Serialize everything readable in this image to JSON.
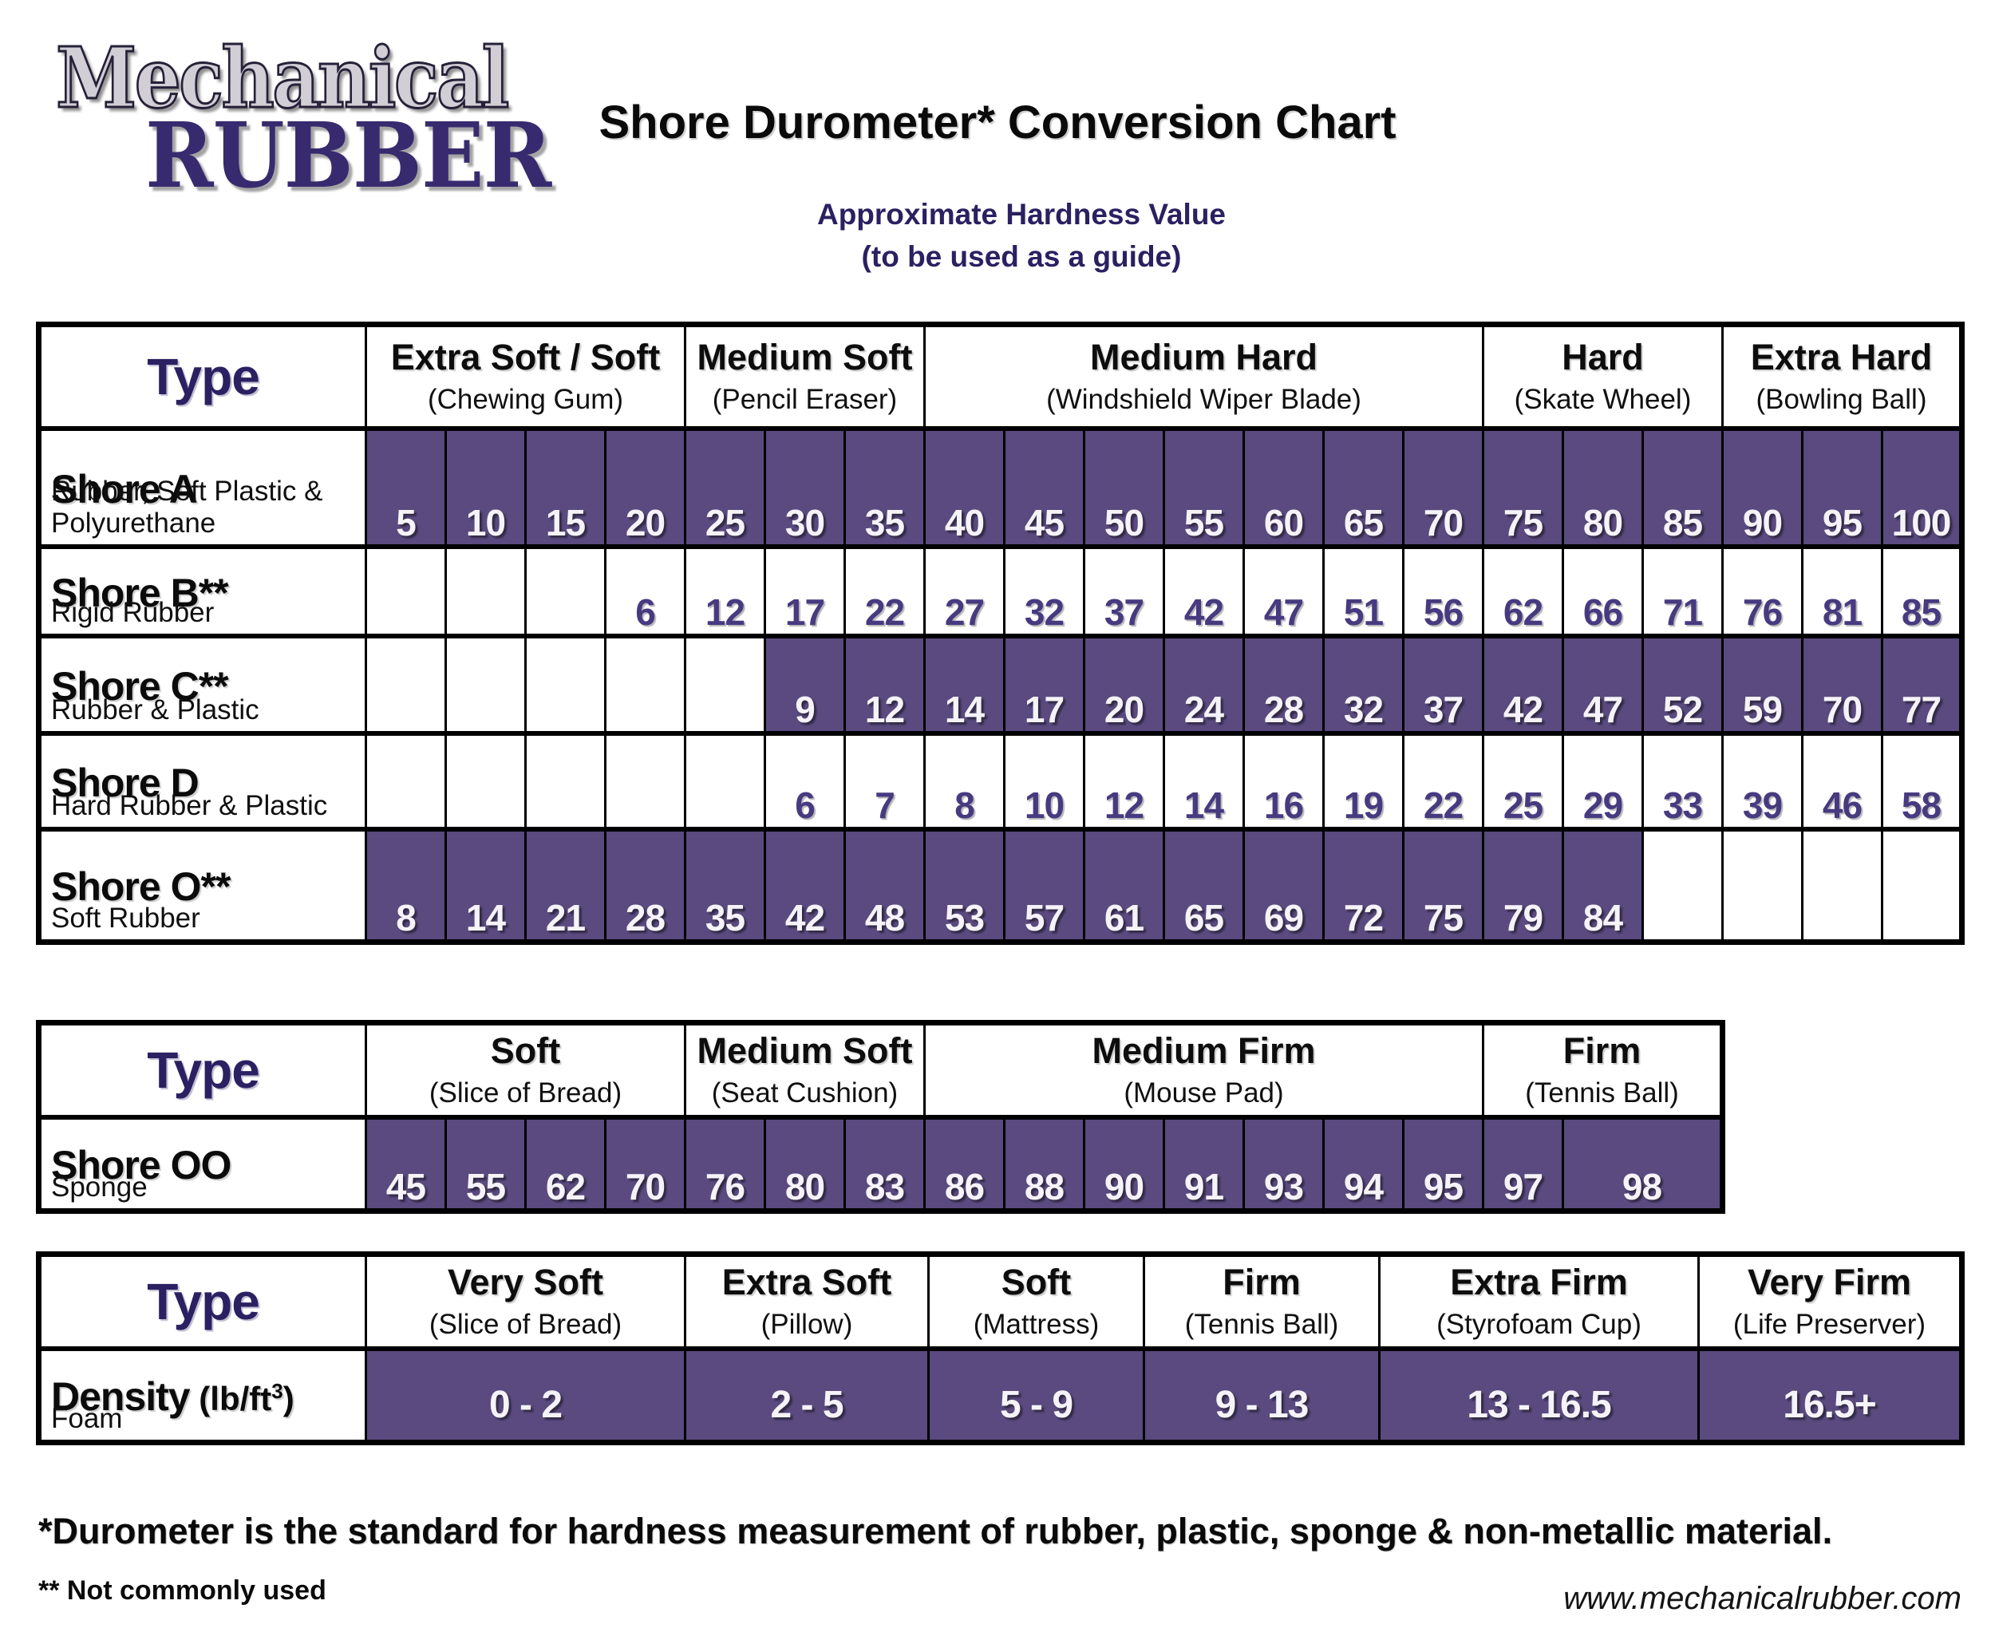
{
  "logo": {
    "line1": "Mechanical",
    "line2": "RUBBER"
  },
  "header": {
    "title": "Shore Durometer* Conversion Chart",
    "subtitle_line1": "Approximate Hardness Value",
    "subtitle_line2": "(to be used as a guide)"
  },
  "colors": {
    "cell_purple": "#5a4a7f",
    "heading_indigo": "#2b2061",
    "value_text_purple": "#473a80"
  },
  "table1": {
    "type_label": "Type",
    "groups": [
      {
        "label": "Extra Soft / Soft",
        "example": "(Chewing Gum)",
        "span": 4
      },
      {
        "label": "Medium Soft",
        "example": "(Pencil Eraser)",
        "span": 3
      },
      {
        "label": "Medium Hard",
        "example": "(Windshield Wiper Blade)",
        "span": 7
      },
      {
        "label": "Hard",
        "example": "(Skate Wheel)",
        "span": 3
      },
      {
        "label": "Extra Hard",
        "example": "(Bowling Ball)",
        "span": 3
      }
    ],
    "rows": [
      {
        "name": "Shore A",
        "desc": "Rubber, Soft Plastic & Polyurethane",
        "fill": "purple",
        "values": [
          "5",
          "10",
          "15",
          "20",
          "25",
          "30",
          "35",
          "40",
          "45",
          "50",
          "55",
          "60",
          "65",
          "70",
          "75",
          "80",
          "85",
          "90",
          "95",
          "100"
        ]
      },
      {
        "name": "Shore B**",
        "desc": "Rigid Rubber",
        "fill": "white",
        "values": [
          "",
          "",
          "",
          "6",
          "12",
          "17",
          "22",
          "27",
          "32",
          "37",
          "42",
          "47",
          "51",
          "56",
          "62",
          "66",
          "71",
          "76",
          "81",
          "85"
        ]
      },
      {
        "name": "Shore C**",
        "desc": "Rubber & Plastic",
        "fill": "purple",
        "values": [
          "",
          "",
          "",
          "",
          "",
          "9",
          "12",
          "14",
          "17",
          "20",
          "24",
          "28",
          "32",
          "37",
          "42",
          "47",
          "52",
          "59",
          "70",
          "77"
        ]
      },
      {
        "name": "Shore D",
        "desc": "Hard Rubber & Plastic",
        "fill": "white",
        "values": [
          "",
          "",
          "",
          "",
          "",
          "6",
          "7",
          "8",
          "10",
          "12",
          "14",
          "16",
          "19",
          "22",
          "25",
          "29",
          "33",
          "39",
          "46",
          "58"
        ]
      },
      {
        "name": "Shore O**",
        "desc": "Soft Rubber",
        "fill": "purple",
        "values": [
          "8",
          "14",
          "21",
          "28",
          "35",
          "42",
          "48",
          "53",
          "57",
          "61",
          "65",
          "69",
          "72",
          "75",
          "79",
          "84",
          "",
          "",
          "",
          ""
        ]
      }
    ]
  },
  "table2": {
    "type_label": "Type",
    "groups": [
      {
        "label": "Soft",
        "example": "(Slice of Bread)",
        "span": 4
      },
      {
        "label": "Medium Soft",
        "example": "(Seat Cushion)",
        "span": 3
      },
      {
        "label": "Medium Firm",
        "example": "(Mouse Pad)",
        "span": 7
      },
      {
        "label": "Firm",
        "example": "(Tennis Ball)",
        "span": 3
      }
    ],
    "rows": [
      {
        "name": "Shore OO",
        "desc": "Sponge",
        "fill": "purple",
        "values": [
          "45",
          "55",
          "62",
          "70",
          "76",
          "80",
          "83",
          "86",
          "88",
          "90",
          "91",
          "93",
          "94",
          "95",
          "97",
          "98"
        ],
        "spans": [
          1,
          1,
          1,
          1,
          1,
          1,
          1,
          1,
          1,
          1,
          1,
          1,
          1,
          1,
          1,
          2
        ]
      }
    ]
  },
  "table3": {
    "type_label": "Type",
    "groups": [
      {
        "label": "Very Soft",
        "example": "(Slice of Bread)",
        "span": 1
      },
      {
        "label": "Extra Soft",
        "example": "(Pillow)",
        "span": 1
      },
      {
        "label": "Soft",
        "example": "(Mattress)",
        "span": 1
      },
      {
        "label": "Firm",
        "example": "(Tennis Ball)",
        "span": 1
      },
      {
        "label": "Extra Firm",
        "example": "(Styrofoam Cup)",
        "span": 1
      },
      {
        "label": "Very Firm",
        "example": "(Life Preserver)",
        "span": 1
      }
    ],
    "rows": [
      {
        "name": "Density",
        "name_unit_pre": "(lb/ft",
        "name_unit_sup": "3",
        "name_unit_post": ")",
        "desc": "Foam",
        "fill": "purple",
        "values": [
          "0 - 2",
          "2 - 5",
          "5 - 9",
          "9 - 13",
          "13 - 16.5",
          "16.5+"
        ]
      }
    ]
  },
  "footnotes": {
    "note1": "*Durometer is the standard for hardness measurement of rubber, plastic, sponge & non-metallic material.",
    "note2": "** Not commonly used",
    "website": "www.mechanicalrubber.com"
  },
  "chart_data": [
    {
      "type": "table",
      "title": "Shore Durometer Conversion Chart — Approximate Hardness Value (to be used as a guide)",
      "hardness_bands": [
        {
          "band": "Extra Soft / Soft (Chewing Gum)",
          "shore_a_range": [
            5,
            20
          ]
        },
        {
          "band": "Medium Soft (Pencil Eraser)",
          "shore_a_range": [
            25,
            35
          ]
        },
        {
          "band": "Medium Hard (Windshield Wiper Blade)",
          "shore_a_range": [
            40,
            70
          ]
        },
        {
          "band": "Hard (Skate Wheel)",
          "shore_a_range": [
            75,
            85
          ]
        },
        {
          "band": "Extra Hard (Bowling Ball)",
          "shore_a_range": [
            90,
            100
          ]
        }
      ],
      "series": [
        {
          "name": "Shore A (Rubber, Soft Plastic & Polyurethane)",
          "values": [
            5,
            10,
            15,
            20,
            25,
            30,
            35,
            40,
            45,
            50,
            55,
            60,
            65,
            70,
            75,
            80,
            85,
            90,
            95,
            100
          ]
        },
        {
          "name": "Shore B (Rigid Rubber, not commonly used)",
          "values": [
            null,
            null,
            null,
            6,
            12,
            17,
            22,
            27,
            32,
            37,
            42,
            47,
            51,
            56,
            62,
            66,
            71,
            76,
            81,
            85
          ]
        },
        {
          "name": "Shore C (Rubber & Plastic, not commonly used)",
          "values": [
            null,
            null,
            null,
            null,
            null,
            9,
            12,
            14,
            17,
            20,
            24,
            28,
            32,
            37,
            42,
            47,
            52,
            59,
            70,
            77
          ]
        },
        {
          "name": "Shore D (Hard Rubber & Plastic)",
          "values": [
            null,
            null,
            null,
            null,
            null,
            6,
            7,
            8,
            10,
            12,
            14,
            16,
            19,
            22,
            25,
            29,
            33,
            39,
            46,
            58
          ]
        },
        {
          "name": "Shore O (Soft Rubber, not commonly used)",
          "values": [
            8,
            14,
            21,
            28,
            35,
            42,
            48,
            53,
            57,
            61,
            65,
            69,
            72,
            75,
            79,
            84,
            null,
            null,
            null,
            null
          ]
        }
      ]
    },
    {
      "type": "table",
      "title": "Shore OO (Sponge)",
      "hardness_bands": [
        "Soft (Slice of Bread)",
        "Medium Soft (Seat Cushion)",
        "Medium Firm (Mouse Pad)",
        "Firm (Tennis Ball)"
      ],
      "values": [
        45,
        55,
        62,
        70,
        76,
        80,
        83,
        86,
        88,
        90,
        91,
        93,
        94,
        95,
        97,
        98
      ]
    },
    {
      "type": "table",
      "title": "Density (lb/ft3) — Foam",
      "categories": [
        "Very Soft (Slice of Bread)",
        "Extra Soft (Pillow)",
        "Soft (Mattress)",
        "Firm (Tennis Ball)",
        "Extra Firm (Styrofoam Cup)",
        "Very Firm (Life Preserver)"
      ],
      "values": [
        "0 - 2",
        "2 - 5",
        "5 - 9",
        "9 - 13",
        "13 - 16.5",
        "16.5+"
      ]
    }
  ]
}
